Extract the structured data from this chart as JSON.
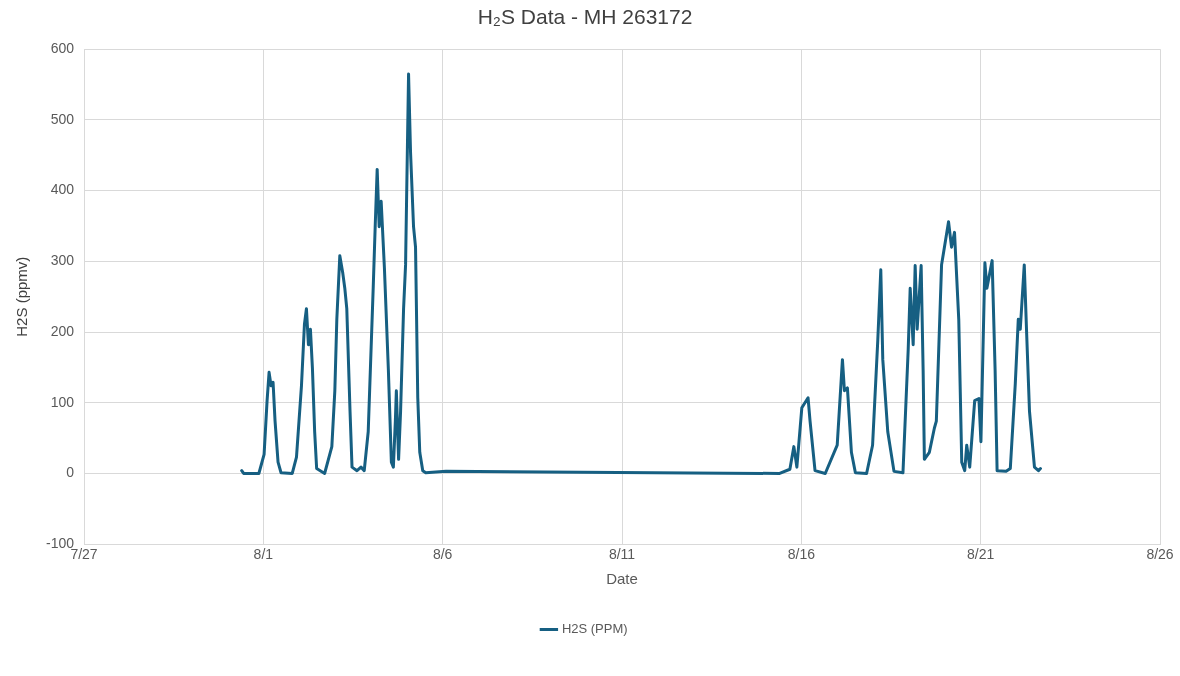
{
  "chart_data": {
    "type": "line",
    "title": "H₂S Data - MH 263172",
    "xlabel": "Date",
    "ylabel": "H2S (ppmv)",
    "x": [
      "--07-31T09:30",
      "--07-31T10:50",
      "--07-31T21:00",
      "--08-01T00:30",
      "--08-01T02:30",
      "--08-01T03:50",
      "--08-01T05:10",
      "--08-01T06:30",
      "--08-01T07:50",
      "--08-01T09:50",
      "--08-01T11:50",
      "--08-01T19:20",
      "--08-01T22:10",
      "--08-02T01:30",
      "--08-02T03:30",
      "--08-02T04:50",
      "--08-02T06:10",
      "--08-02T07:30",
      "--08-02T08:50",
      "--08-02T10:20",
      "--08-02T11:40",
      "--08-02T17:00",
      "--08-02T21:50",
      "--08-02T23:50",
      "--08-03T01:10",
      "--08-03T03:10",
      "--08-03T05:10",
      "--08-03T06:30",
      "--08-03T07:50",
      "--08-03T10:00",
      "--08-03T11:20",
      "--08-03T14:40",
      "--08-03T17:20",
      "--08-03T19:30",
      "--08-03T22:10",
      "--08-04T01:30",
      "--08-04T02:50",
      "--08-04T04:10",
      "--08-04T05:30",
      "--08-04T06:50",
      "--08-04T09:00",
      "--08-04T11:40",
      "--08-04T13:40",
      "--08-04T15:00",
      "--08-04T16:20",
      "--08-04T17:00",
      "--08-04T18:30",
      "--08-04T19:50",
      "--08-04T21:50",
      "--08-04T23:10",
      "--08-05T01:10",
      "--08-05T02:30",
      "--08-05T04:30",
      "--08-05T05:50",
      "--08-05T07:20",
      "--08-05T08:40",
      "--08-05T10:40",
      "--08-05T12:40",
      "--08-06T02:10",
      "--08-15T09:30",
      "--08-15T16:20",
      "--08-15T19:00",
      "--08-15T21:00",
      "--08-16T00:20",
      "--08-16T04:30",
      "--08-16T05:50",
      "--08-16T09:10",
      "--08-16T16:00",
      "--08-17T00:00",
      "--08-17T03:30",
      "--08-17T04:50",
      "--08-17T06:50",
      "--08-17T09:30",
      "--08-17T12:10",
      "--08-17T19:40",
      "--08-17T23:40",
      "--08-18T03:10",
      "--08-18T05:10",
      "--08-18T06:30",
      "--08-18T09:50",
      "--08-18T14:00",
      "--08-18T20:00",
      "--08-18T23:30",
      "--08-19T00:50",
      "--08-19T02:50",
      "--08-19T04:10",
      "--08-19T05:30",
      "--08-19T08:10",
      "--08-19T09:30",
      "--08-19T10:20",
      "--08-19T13:40",
      "--08-19T17:00",
      "--08-19T18:20",
      "--08-19T21:50",
      "--08-20T02:30",
      "--08-20T04:30",
      "--08-20T06:30",
      "--08-20T09:20",
      "--08-20T11:20",
      "--08-20T13:20",
      "--08-20T14:40",
      "--08-20T16:40",
      "--08-20T20:00",
      "--08-20T22:50",
      "--08-21T00:10",
      "--08-21T02:50",
      "--08-21T04:10",
      "--08-21T07:40",
      "--08-21T09:40",
      "--08-21T11:00",
      "--08-21T17:00",
      "--08-21T19:50",
      "--08-21T23:10",
      "--08-22T01:10",
      "--08-22T02:30",
      "--08-22T05:10",
      "--08-22T06:40",
      "--08-22T08:40",
      "--08-22T12:00",
      "--08-22T14:40",
      "--08-22T16:00"
    ],
    "series": [
      {
        "name": "H2S (PPM)",
        "color": "#165f82",
        "values": [
          4,
          0,
          0,
          27,
          103,
          143,
          124,
          129,
          74,
          16,
          1,
          0,
          23,
          124,
          211,
          233,
          182,
          204,
          149,
          59,
          7,
          0,
          38,
          117,
          218,
          308,
          283,
          262,
          233,
          88,
          9,
          4,
          9,
          4,
          59,
          262,
          349,
          430,
          349,
          385,
          291,
          146,
          16,
          9,
          74,
          117,
          20,
          88,
          233,
          295,
          565,
          454,
          349,
          320,
          107,
          30,
          4,
          1,
          3,
          0,
          6,
          38,
          9,
          93,
          107,
          74,
          4,
          0,
          40,
          161,
          117,
          121,
          30,
          1,
          0,
          40,
          189,
          288,
          161,
          59,
          3,
          1,
          175,
          262,
          182,
          294,
          204,
          294,
          146,
          20,
          30,
          64,
          74,
          295,
          356,
          320,
          341,
          218,
          16,
          4,
          40,
          9,
          103,
          106,
          45,
          298,
          262,
          301,
          146,
          4,
          3,
          7,
          127,
          218,
          204,
          295,
          204,
          88,
          9,
          4,
          7
        ]
      }
    ],
    "xlim": [
      "--07-27",
      "--08-26"
    ],
    "xticks": [
      {
        "value": "--07-27",
        "label": "7/27"
      },
      {
        "value": "--08-01",
        "label": "8/1"
      },
      {
        "value": "--08-06",
        "label": "8/6"
      },
      {
        "value": "--08-11",
        "label": "8/11"
      },
      {
        "value": "--08-16",
        "label": "8/16"
      },
      {
        "value": "--08-21",
        "label": "8/21"
      },
      {
        "value": "--08-26",
        "label": "8/26"
      }
    ],
    "ylim": [
      -100,
      600
    ],
    "yticks": [
      -100,
      0,
      100,
      200,
      300,
      400,
      500,
      600
    ],
    "grid": true,
    "legend": "bottom",
    "marker": "none",
    "line_style": "solid"
  }
}
